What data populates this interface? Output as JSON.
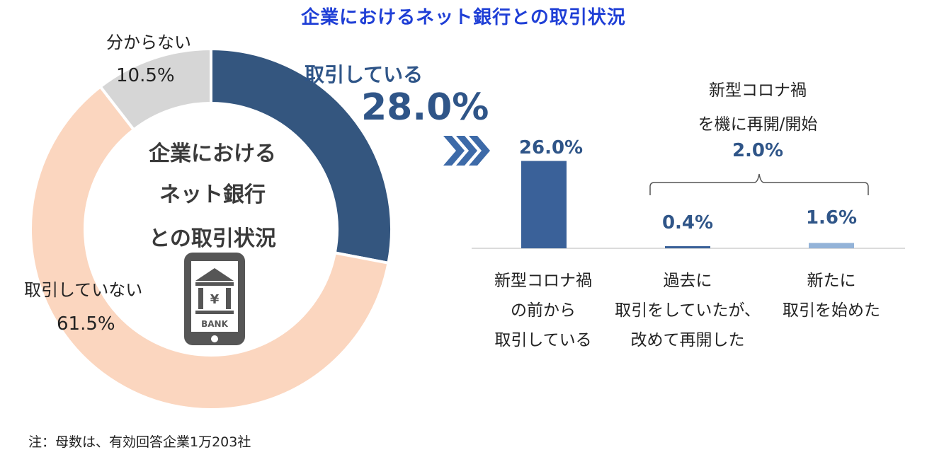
{
  "title": "企業におけるネット銀行との取引状況",
  "center_text": [
    "企業における",
    "ネット銀行",
    "との取引状況"
  ],
  "bank_icon_text": "BANK",
  "bank_icon_symbol": "¥",
  "note": "注：母数は、有効回答企業1万203社",
  "colors": {
    "title": "#1f3fd6",
    "dark_blue": "#2f5588",
    "bar_main": "#3a6199",
    "bar_light": "#93b3d8",
    "peach": "#fbd6bf",
    "gray": "#d6d6d6",
    "icon": "#565656"
  },
  "chart_data": [
    {
      "type": "pie",
      "variant": "donut",
      "categories": [
        "取引している",
        "取引していない",
        "分からない"
      ],
      "values": [
        28.0,
        61.5,
        10.5
      ],
      "value_labels": [
        "28.0%",
        "61.5%",
        "10.5%"
      ],
      "colors": [
        "#34567f",
        "#fbd6bf",
        "#d6d6d6"
      ]
    },
    {
      "type": "bar",
      "categories": [
        [
          "新型コロナ禍",
          "の前から",
          "取引している"
        ],
        [
          "過去に",
          "取引をしていたが、",
          "改めて再開した"
        ],
        [
          "新たに",
          "取引を始めた"
        ]
      ],
      "values": [
        26.0,
        0.4,
        1.6
      ],
      "value_labels": [
        "26.0%",
        "0.4%",
        "1.6%"
      ],
      "colors": [
        "#3a6199",
        "#3a6199",
        "#93b3d8"
      ],
      "group_label": [
        "新型コロナ禍",
        "を機に再開/開始"
      ],
      "group_value": "2.0%"
    }
  ]
}
